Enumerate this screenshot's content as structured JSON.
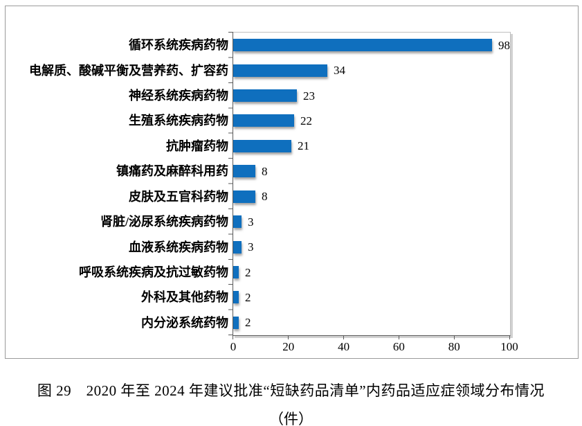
{
  "chart_data": {
    "type": "bar",
    "orientation": "horizontal",
    "categories": [
      "循环系统疾病药物",
      "电解质、酸碱平衡及营养药、扩容药",
      "神经系统疾病药物",
      "生殖系统疾病药物",
      "抗肿瘤药物",
      "镇痛药及麻醉科用药",
      "皮肤及五官科药物",
      "肾脏/泌尿系统疾病药物",
      "血液系统疾病药物",
      "呼吸系统疾病及抗过敏药物",
      "外科及其他药物",
      "内分泌系统药物"
    ],
    "values": [
      98,
      34,
      23,
      22,
      21,
      8,
      8,
      3,
      3,
      2,
      2,
      2
    ],
    "xticks": [
      "0",
      "20",
      "40",
      "60",
      "80",
      "100"
    ],
    "xlim": [
      0,
      100
    ],
    "grid": false,
    "legend": "none",
    "data_labels": true,
    "colors": {
      "bar": "#0f6fbe",
      "axis": "#595959",
      "plot_border": "#bfbfbf",
      "figure_border": "#9a9a9a"
    },
    "title": "图 29　2020 年至 2024 年建议批准“短缺药品清单”内药品适应症领域分布情况",
    "unit_label": "（件）"
  },
  "caption": {
    "line1": "图 29　2020 年至 2024 年建议批准“短缺药品清单”内药品适应症领域分布情况",
    "line2": "（件）"
  }
}
